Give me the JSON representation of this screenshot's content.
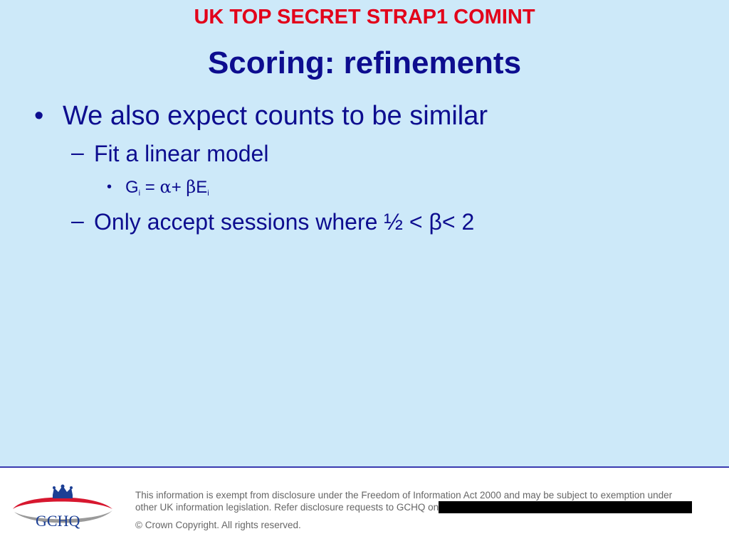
{
  "header": {
    "classification": "UK TOP SECRET STRAP1 COMINT",
    "title": "Scoring: refinements"
  },
  "body": {
    "bullet1": "We also expect counts to be similar",
    "sub1": "Fit a linear model",
    "equation": {
      "g": "G",
      "g_sub": "i",
      "equals": " = ",
      "alpha": "α",
      "plus": "+ ",
      "beta": "β",
      "e": "E",
      "e_sub": "i"
    },
    "sub2": "Only accept sessions where ½ < β< 2"
  },
  "footer": {
    "logo_text": "GCHQ",
    "legal_line1": "This information is exempt from disclosure under the Freedom of Information Act 2000 and may be subject to exemption under",
    "legal_line2": "other UK information legislation. Refer disclosure requests to GCHQ on",
    "copyright": "© Crown Copyright. All rights reserved."
  },
  "colors": {
    "background": "#cde9f9",
    "classification": "#e2001a",
    "text": "#0d0d8f",
    "logo_red": "#d7172f",
    "logo_blue": "#1c3f94"
  }
}
